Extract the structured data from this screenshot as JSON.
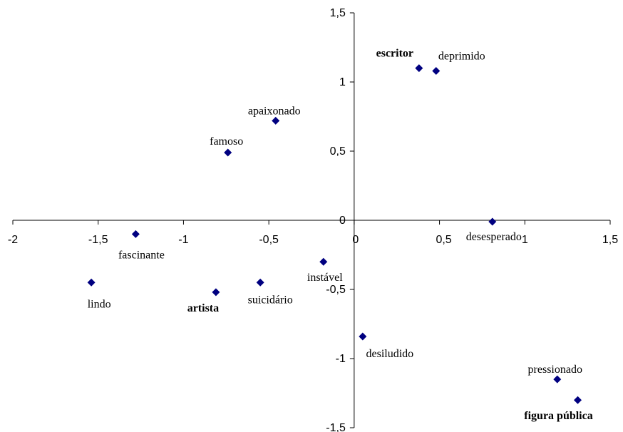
{
  "chart_data": {
    "type": "scatter",
    "title": "",
    "xlabel": "",
    "ylabel": "",
    "xlim": [
      -2,
      1.5
    ],
    "ylim": [
      -1.5,
      1.5
    ],
    "x_ticks": [
      "-2",
      "-1,5",
      "-1",
      "-0,5",
      "0",
      "0,5",
      "1",
      "1,5"
    ],
    "y_ticks": [
      "-1,5",
      "-1",
      "-0,5",
      "0",
      "0,5",
      "1",
      "1,5"
    ],
    "grid": false,
    "legend": "none",
    "marker_color": "#000080",
    "points": [
      {
        "label": "escritor",
        "x": 0.38,
        "y": 1.1,
        "bold": true
      },
      {
        "label": "deprimido",
        "x": 0.48,
        "y": 1.08,
        "bold": false
      },
      {
        "label": "apaixonado",
        "x": -0.46,
        "y": 0.72,
        "bold": false
      },
      {
        "label": "famoso",
        "x": -0.74,
        "y": 0.49,
        "bold": false
      },
      {
        "label": "desesperado",
        "x": 0.81,
        "y": -0.01,
        "bold": false
      },
      {
        "label": "fascinante",
        "x": -1.28,
        "y": -0.1,
        "bold": false
      },
      {
        "label": "instável",
        "x": -0.18,
        "y": -0.3,
        "bold": false
      },
      {
        "label": "lindo",
        "x": -1.54,
        "y": -0.45,
        "bold": false
      },
      {
        "label": "artista",
        "x": -0.81,
        "y": -0.52,
        "bold": true
      },
      {
        "label": "suicidário",
        "x": -0.55,
        "y": -0.45,
        "bold": false
      },
      {
        "label": "desiludido",
        "x": 0.05,
        "y": -0.84,
        "bold": false
      },
      {
        "label": "pressionado",
        "x": 1.19,
        "y": -1.15,
        "bold": false
      },
      {
        "label": "figura pública",
        "x": 1.31,
        "y": -1.3,
        "bold": true
      }
    ]
  }
}
